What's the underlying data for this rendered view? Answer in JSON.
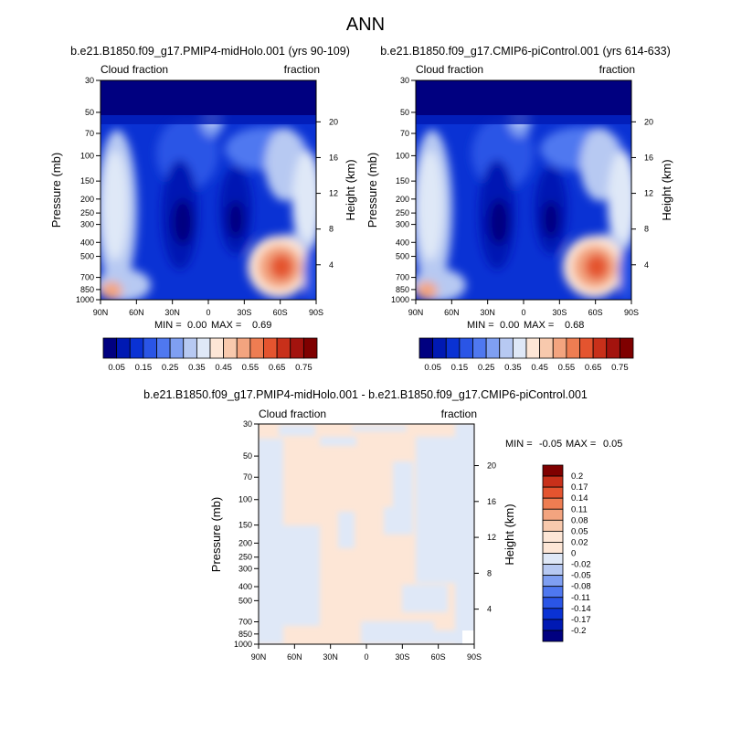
{
  "figure": {
    "title": "ANN"
  },
  "chart_data": [
    {
      "type": "heatmap",
      "title": "b.e21.B1850.f09_g17.PMIP4-midHolo.001 (yrs 90-109)",
      "left_label": "Cloud fraction",
      "right_label": "fraction",
      "ylabel": "Pressure (mb)",
      "y2label": "Height (km)",
      "x_ticks": [
        "90N",
        "60N",
        "30N",
        "0",
        "30S",
        "60S",
        "90S"
      ],
      "y_ticks": [
        "1000",
        "850",
        "700",
        "500",
        "400",
        "300",
        "250",
        "200",
        "150",
        "100",
        "70",
        "50",
        "30"
      ],
      "y2_ticks": [
        "4",
        "8",
        "12",
        "16",
        "20"
      ],
      "stats": {
        "min_label": "MIN =",
        "min": "0.00",
        "max_label": "MAX =",
        "max": "0.69"
      },
      "colorbar": {
        "orientation": "horizontal",
        "labels": [
          "0.05",
          "0.15",
          "0.25",
          "0.35",
          "0.45",
          "0.55",
          "0.65",
          "0.75"
        ],
        "colors": [
          "#000080",
          "#0019b3",
          "#0a32d4",
          "#2a55e6",
          "#4f78f0",
          "#7f9ff2",
          "#b7c9f2",
          "#dfe8f7",
          "#fde6d6",
          "#f8c9ad",
          "#f3a47f",
          "#ee7d52",
          "#e4542f",
          "#c8301a",
          "#a3130e",
          "#7f0000"
        ]
      }
    },
    {
      "type": "heatmap",
      "title": "b.e21.B1850.f09_g17.CMIP6-piControl.001 (yrs 614-633)",
      "left_label": "Cloud fraction",
      "right_label": "fraction",
      "ylabel": "Pressure (mb)",
      "y2label": "Height (km)",
      "x_ticks": [
        "90N",
        "60N",
        "30N",
        "0",
        "30S",
        "60S",
        "90S"
      ],
      "y_ticks": [
        "1000",
        "850",
        "700",
        "500",
        "400",
        "300",
        "250",
        "200",
        "150",
        "100",
        "70",
        "50",
        "30"
      ],
      "y2_ticks": [
        "4",
        "8",
        "12",
        "16",
        "20"
      ],
      "stats": {
        "min_label": "MIN =",
        "min": "0.00",
        "max_label": "MAX =",
        "max": "0.68"
      },
      "colorbar": {
        "orientation": "horizontal",
        "labels": [
          "0.05",
          "0.15",
          "0.25",
          "0.35",
          "0.45",
          "0.55",
          "0.65",
          "0.75"
        ],
        "colors": [
          "#000080",
          "#0019b3",
          "#0a32d4",
          "#2a55e6",
          "#4f78f0",
          "#7f9ff2",
          "#b7c9f2",
          "#dfe8f7",
          "#fde6d6",
          "#f8c9ad",
          "#f3a47f",
          "#ee7d52",
          "#e4542f",
          "#c8301a",
          "#a3130e",
          "#7f0000"
        ]
      }
    },
    {
      "type": "heatmap",
      "title": "b.e21.B1850.f09_g17.PMIP4-midHolo.001 - b.e21.B1850.f09_g17.CMIP6-piControl.001",
      "left_label": "Cloud fraction",
      "right_label": "fraction",
      "ylabel": "Pressure (mb)",
      "y2label": "Height (km)",
      "x_ticks": [
        "90N",
        "60N",
        "30N",
        "0",
        "30S",
        "60S",
        "90S"
      ],
      "y_ticks": [
        "1000",
        "850",
        "700",
        "500",
        "400",
        "300",
        "250",
        "200",
        "150",
        "100",
        "70",
        "50",
        "30"
      ],
      "y2_ticks": [
        "4",
        "8",
        "12",
        "16",
        "20"
      ],
      "stats": {
        "min_label": "MIN =",
        "min": "-0.05",
        "max_label": "MAX =",
        "max": "0.05"
      },
      "colorbar": {
        "orientation": "vertical",
        "labels": [
          "0.2",
          "0.17",
          "0.14",
          "0.11",
          "0.08",
          "0.05",
          "0.02",
          "0",
          "-0.02",
          "-0.05",
          "-0.08",
          "-0.11",
          "-0.14",
          "-0.17",
          "-0.2"
        ],
        "colors": [
          "#7f0000",
          "#c8301a",
          "#e4542f",
          "#ee7d52",
          "#f3a47f",
          "#f8c9ad",
          "#fde6d6",
          "#fde6d6",
          "#dfe8f7",
          "#b7c9f2",
          "#7f9ff2",
          "#4f78f0",
          "#2a55e6",
          "#0a32d4",
          "#0019b3",
          "#000080"
        ]
      }
    }
  ]
}
